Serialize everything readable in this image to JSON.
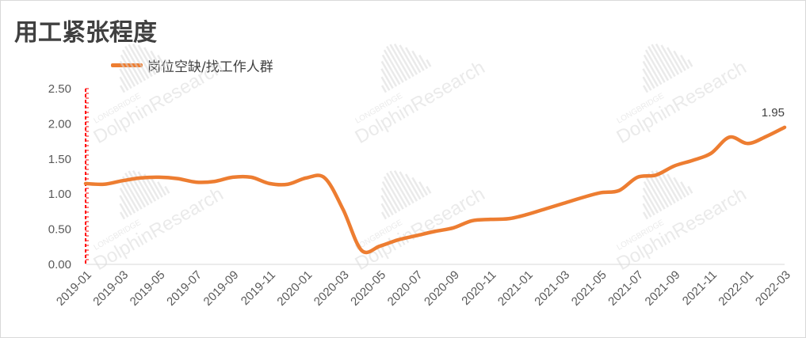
{
  "chart_data": {
    "type": "line",
    "title": "用工紧张程度",
    "series": [
      {
        "name": "岗位空缺/找工作人群",
        "color": "#ED7D31",
        "x": [
          "2019-01",
          "2019-02",
          "2019-03",
          "2019-04",
          "2019-05",
          "2019-06",
          "2019-07",
          "2019-08",
          "2019-09",
          "2019-10",
          "2019-11",
          "2019-12",
          "2020-01",
          "2020-02",
          "2020-03",
          "2020-04",
          "2020-05",
          "2020-06",
          "2020-07",
          "2020-08",
          "2020-09",
          "2020-10",
          "2020-11",
          "2020-12",
          "2021-01",
          "2021-02",
          "2021-03",
          "2021-04",
          "2021-05",
          "2021-06",
          "2021-07",
          "2021-08",
          "2021-09",
          "2021-10",
          "2021-11",
          "2021-12",
          "2022-01",
          "2022-02",
          "2022-03"
        ],
        "values": [
          1.15,
          1.14,
          1.19,
          1.23,
          1.24,
          1.22,
          1.17,
          1.18,
          1.24,
          1.24,
          1.15,
          1.14,
          1.23,
          1.23,
          0.78,
          0.2,
          0.26,
          0.35,
          0.41,
          0.47,
          0.52,
          0.62,
          0.64,
          0.65,
          0.71,
          0.79,
          0.87,
          0.95,
          1.02,
          1.05,
          1.24,
          1.27,
          1.4,
          1.48,
          1.58,
          1.81,
          1.72,
          1.82,
          1.95
        ]
      }
    ],
    "x_tick_labels": [
      "2019-01",
      "2019-03",
      "2019-05",
      "2019-07",
      "2019-09",
      "2019-11",
      "2020-01",
      "2020-03",
      "2020-05",
      "2020-07",
      "2020-09",
      "2020-11",
      "2021-01",
      "2021-03",
      "2021-05",
      "2021-07",
      "2021-09",
      "2021-11",
      "2022-01",
      "2022-03"
    ],
    "y_tick_labels": [
      "0.00",
      "0.50",
      "1.00",
      "1.50",
      "2.00",
      "2.50"
    ],
    "ylim": [
      0,
      2.5
    ],
    "annotations": [
      {
        "x": "2022-03",
        "text": "1.95"
      }
    ],
    "legend_position": "top-left",
    "grid": false,
    "axis_color": "#FF0000"
  },
  "watermark": {
    "brand_small": "LONGBRIDGE",
    "brand_large": "DolphinResearch"
  }
}
